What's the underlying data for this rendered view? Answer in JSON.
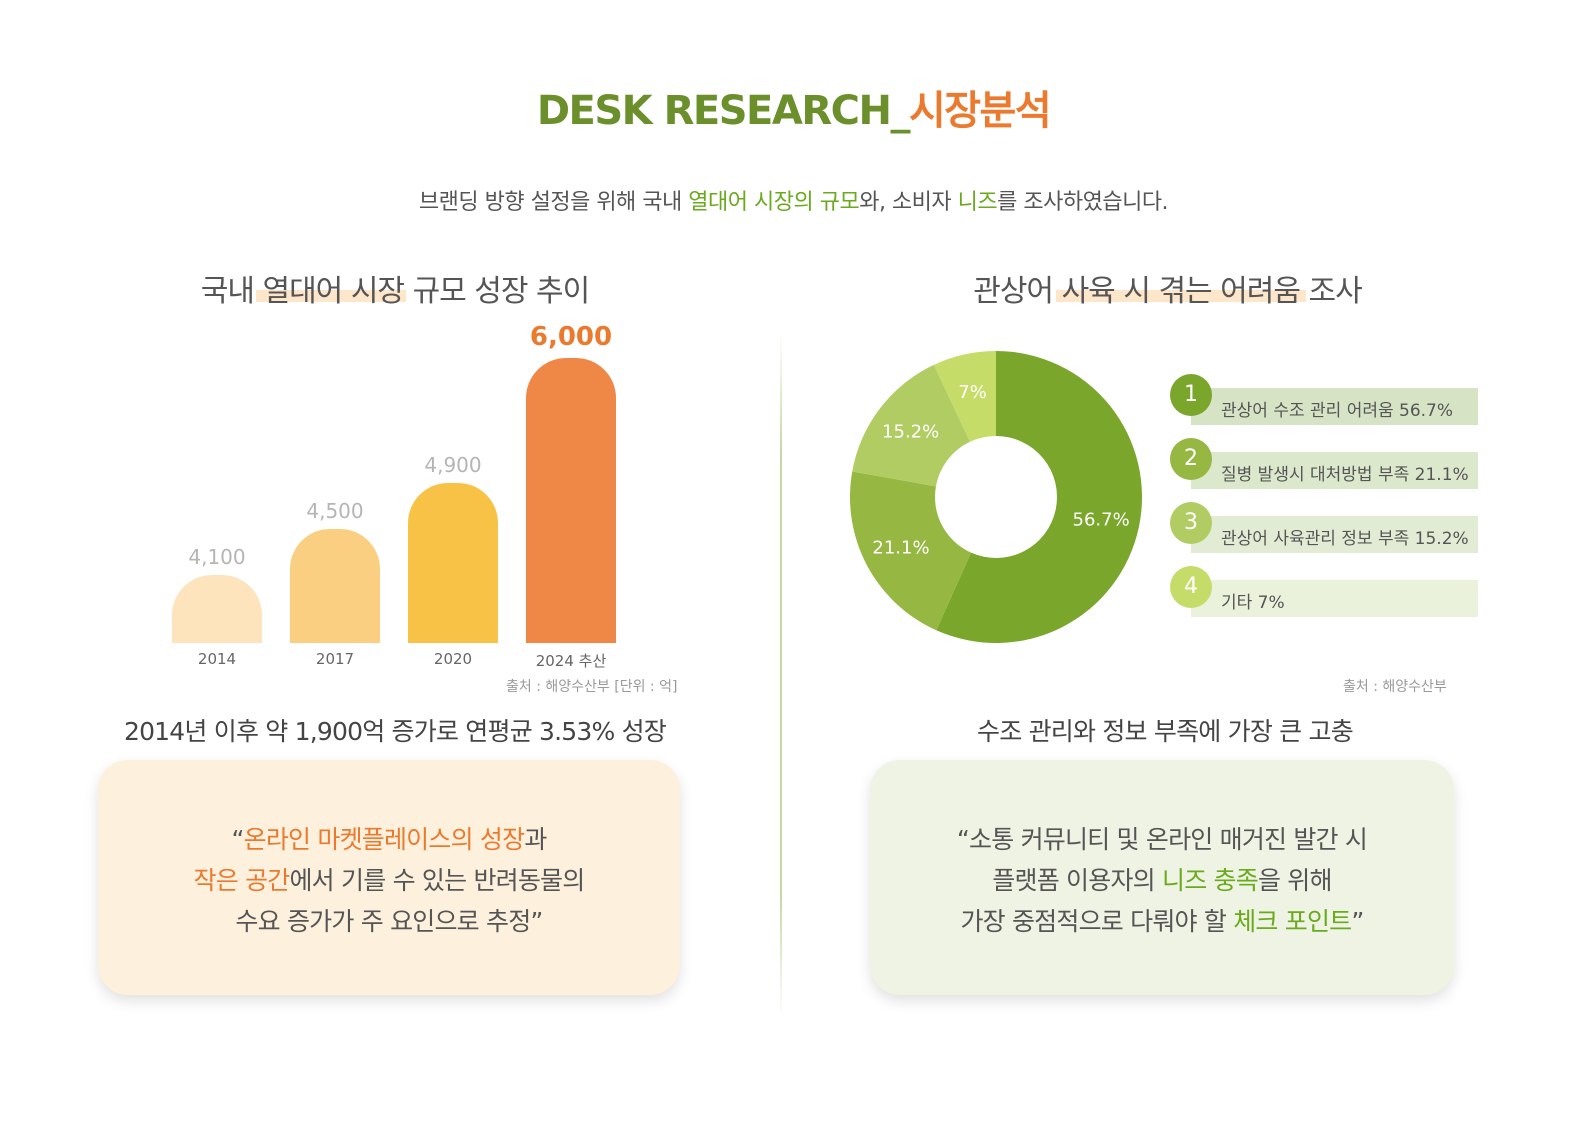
{
  "title": {
    "main": "DESK RESEARCH_",
    "accent": "시장분석"
  },
  "subtitle": {
    "p1": "브랜딩 방향 설정을 위해 국내 ",
    "h1": "열대어 시장의 규모",
    "p2": "와, 소비자 ",
    "h2": "니즈",
    "p3": "를 조사하였습니다."
  },
  "left": {
    "heading": {
      "p1": "국내 ",
      "hl": "열대어 시장",
      "p2": " 규모 성장 추이"
    },
    "source": "출처 : 해양수산부 [단위 : 억]",
    "summary": "2014년 이후 약 1,900억 증가로 연평균 3.53% 성장",
    "quote": {
      "l1_open": "“",
      "l1_hl": "온라인 마켓플레이스의 성장",
      "l1_rest": "과",
      "l2_hl": "작은 공간",
      "l2_rest": "에서 기를 수 있는 반려동물의",
      "l3": "수요 증가가 주 요인으로 추정”"
    }
  },
  "right": {
    "heading": {
      "p1": "관상어 ",
      "hl": "사육 시 겪는 어려움",
      "p2": " 조사"
    },
    "source": "출처 : 해양수산부",
    "summary": "수조 관리와 정보 부족에 가장 큰 고충",
    "legend": [
      {
        "num": "1",
        "label": "관상어 수조 관리 어려움 56.7%"
      },
      {
        "num": "2",
        "label": "질병 발생시 대처방법 부족 21.1%"
      },
      {
        "num": "3",
        "label": "관상어 사육관리 정보 부족 15.2%"
      },
      {
        "num": "4",
        "label": "기타 7%"
      }
    ],
    "quote": {
      "l1": "“소통 커뮤니티 및 온라인 매거진 발간 시",
      "l2_pre": "플랫폼 이용자의 ",
      "l2_hl": "니즈 충족",
      "l2_post": "을 위해",
      "l3_pre": "가장 중점적으로 다뤄야 할 ",
      "l3_hl": "체크 포인트",
      "l3_post": "”"
    }
  },
  "colors": {
    "title_green": "#6a8f2b",
    "accent_orange": "#ec7a2e",
    "bar_colors": [
      "#fde4bd",
      "#fbcf81",
      "#f8c247",
      "#ef8846"
    ],
    "donut_colors": [
      "#7aa62b",
      "#96b842",
      "#b1cc63",
      "#c5dc69"
    ]
  },
  "chart_data": [
    {
      "type": "bar",
      "categories": [
        "2014",
        "2017",
        "2020",
        "2024 추산"
      ],
      "values": [
        4100,
        4500,
        4900,
        6000
      ],
      "value_labels": [
        "4,100",
        "4,500",
        "4,900",
        "6,000"
      ],
      "title": "국내 열대어 시장 규모 성장 추이",
      "ylim": [
        3500,
        6000
      ],
      "grid": false
    },
    {
      "type": "pie",
      "donut": true,
      "title": "관상어 사육 시 겪는 어려움 조사",
      "labels": [
        "관상어 수조 관리 어려움",
        "질병 발생시 대처방법 부족",
        "관상어 사육관리 정보 부족",
        "기타"
      ],
      "values": [
        56.7,
        21.1,
        15.2,
        7
      ],
      "value_labels": [
        "56.7%",
        "21.1%",
        "15.2%",
        "7%"
      ],
      "legend": "right"
    }
  ]
}
